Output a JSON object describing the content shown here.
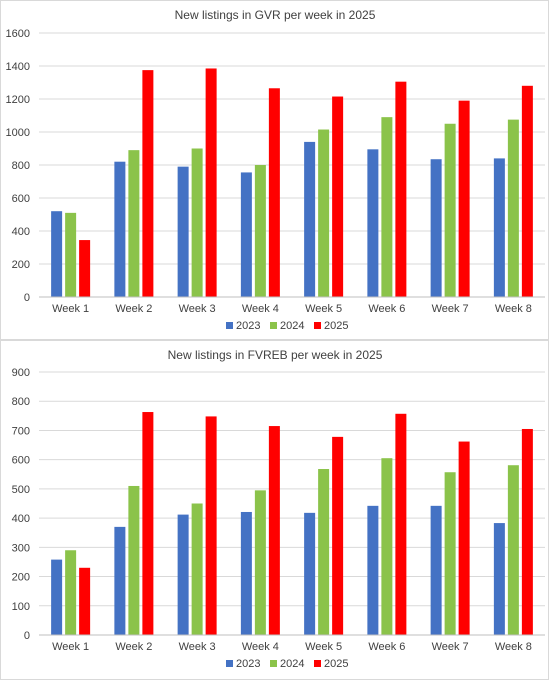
{
  "chart_data": [
    {
      "type": "bar",
      "title": "New listings in GVR per week in 2025",
      "xlabel": "",
      "ylabel": "",
      "categories": [
        "Week 1",
        "Week 2",
        "Week 3",
        "Week 4",
        "Week 5",
        "Week 6",
        "Week 7",
        "Week 8"
      ],
      "ylim": [
        0,
        1600
      ],
      "yticks": [
        0,
        200,
        400,
        600,
        800,
        1000,
        1200,
        1400,
        1600
      ],
      "grid": true,
      "legend_position": "bottom",
      "series": [
        {
          "name": "2023",
          "color": "#4472C4",
          "values": [
            520,
            820,
            790,
            755,
            940,
            895,
            835,
            840
          ]
        },
        {
          "name": "2024",
          "color": "#8BC34A",
          "values": [
            510,
            890,
            900,
            800,
            1015,
            1090,
            1050,
            1075
          ]
        },
        {
          "name": "2025",
          "color": "#FF0000",
          "values": [
            345,
            1375,
            1385,
            1265,
            1215,
            1305,
            1190,
            1280
          ]
        }
      ]
    },
    {
      "type": "bar",
      "title": "New listings in FVREB per week in 2025",
      "xlabel": "",
      "ylabel": "",
      "categories": [
        "Week 1",
        "Week 2",
        "Week 3",
        "Week 4",
        "Week 5",
        "Week 6",
        "Week 7",
        "Week 8"
      ],
      "ylim": [
        0,
        900
      ],
      "yticks": [
        0,
        100,
        200,
        300,
        400,
        500,
        600,
        700,
        800,
        900
      ],
      "grid": true,
      "legend_position": "bottom",
      "series": [
        {
          "name": "2023",
          "color": "#4472C4",
          "values": [
            258,
            370,
            412,
            421,
            418,
            442,
            442,
            383
          ]
        },
        {
          "name": "2024",
          "color": "#8BC34A",
          "values": [
            290,
            510,
            450,
            495,
            568,
            605,
            557,
            581
          ]
        },
        {
          "name": "2025",
          "color": "#FF0000",
          "values": [
            230,
            763,
            748,
            715,
            678,
            757,
            662,
            705
          ]
        }
      ]
    }
  ]
}
